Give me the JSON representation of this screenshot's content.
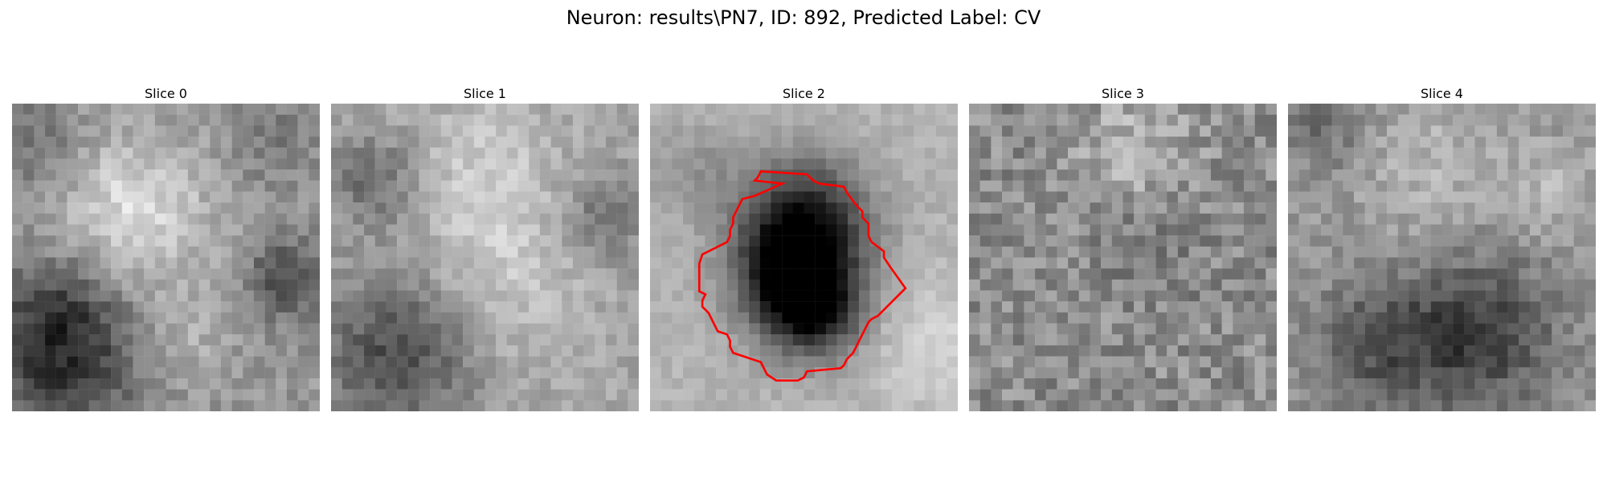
{
  "figure": {
    "title": "Neuron: results\\PN7, ID: 892, Predicted Label: CV",
    "colormap": "gray",
    "contour_color": "#ff0000"
  },
  "panels": [
    {
      "title": "Slice 0"
    },
    {
      "title": "Slice 1"
    },
    {
      "title": "Slice 2"
    },
    {
      "title": "Slice 3"
    },
    {
      "title": "Slice 4"
    }
  ]
}
